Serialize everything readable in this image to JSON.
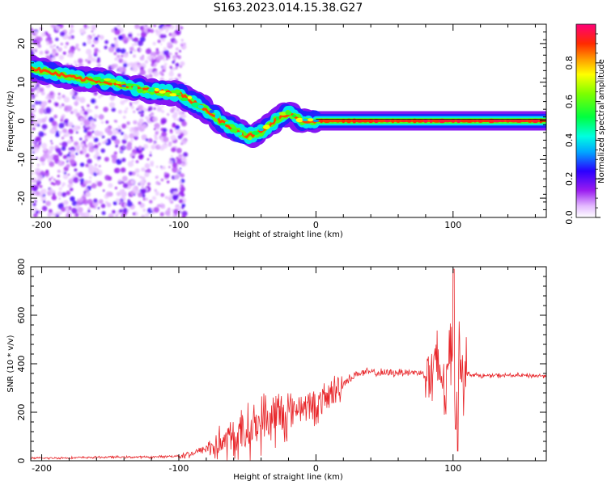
{
  "title": "S163.2023.014.15.38.G27",
  "colors": {
    "snr_line": "#e8262a",
    "ridge": "#ff2a00",
    "frame": "#000000"
  },
  "chart_data": [
    {
      "type": "heatmap",
      "xlabel": "Height of straight line (km)",
      "ylabel": "Frequency (Hz)",
      "xlim": [
        -208,
        168
      ],
      "ylim": [
        -25,
        25
      ],
      "xticks": [
        -200,
        -100,
        0,
        100
      ],
      "yticks": [
        -20,
        -10,
        0,
        10,
        20
      ],
      "ridge_x": [
        -200,
        -175,
        -150,
        -125,
        -100,
        -90,
        -80,
        -70,
        -60,
        -50,
        -40,
        -30,
        -20,
        -10,
        0,
        10,
        30,
        60,
        80,
        90,
        100,
        110,
        140,
        168
      ],
      "ridge_y": [
        13,
        11,
        10,
        8,
        7,
        5,
        3,
        0,
        -2,
        -4,
        -3,
        0,
        2,
        0,
        0,
        0,
        0,
        0,
        0,
        0,
        0,
        0,
        0,
        0
      ],
      "noise_region_x": [
        -208,
        -95
      ],
      "colorbar": {
        "label": "Normalized spectral amplitude",
        "range": [
          0,
          1
        ],
        "ticks": [
          "0.0",
          "0.2",
          "0.4",
          "0.6",
          "0.8"
        ],
        "tick_values": [
          0,
          0.2,
          0.4,
          0.6,
          0.8
        ]
      }
    },
    {
      "type": "line",
      "xlabel": "Height of straight line (km)",
      "ylabel": "SNR (10 * v/v)",
      "xlim": [
        -208,
        168
      ],
      "ylim": [
        0,
        800
      ],
      "xticks": [
        -200,
        -100,
        0,
        100
      ],
      "yticks": [
        0,
        200,
        400,
        600,
        800
      ],
      "series": [
        {
          "x": [
            -208,
            -180,
            -150,
            -120,
            -100,
            -90,
            -80,
            -70,
            -60,
            -50,
            -40,
            -30,
            -20,
            -10,
            0,
            10,
            20,
            30,
            40,
            50,
            60,
            70,
            80,
            85,
            90,
            95,
            100,
            102,
            105,
            110,
            120,
            140,
            168
          ],
          "y": [
            10,
            12,
            15,
            15,
            20,
            30,
            50,
            70,
            90,
            120,
            160,
            180,
            200,
            230,
            220,
            270,
            320,
            360,
            365,
            360,
            365,
            365,
            360,
            350,
            380,
            300,
            560,
            200,
            420,
            360,
            350,
            352,
            350
          ]
        }
      ]
    }
  ]
}
